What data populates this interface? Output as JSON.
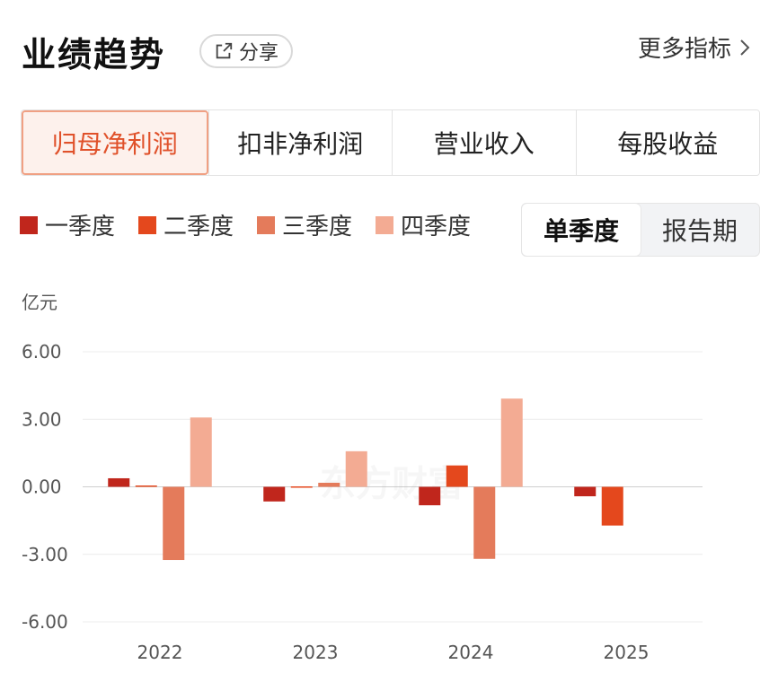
{
  "header": {
    "title": "业绩趋势",
    "share_label": "分享",
    "more_label": "更多指标"
  },
  "tabs": [
    {
      "label": "归母净利润",
      "active": true
    },
    {
      "label": "扣非净利润",
      "active": false
    },
    {
      "label": "营业收入",
      "active": false
    },
    {
      "label": "每股收益",
      "active": false
    }
  ],
  "legend": [
    {
      "label": "一季度",
      "color": "#c0261c"
    },
    {
      "label": "二季度",
      "color": "#e4481d"
    },
    {
      "label": "三季度",
      "color": "#e47b5b"
    },
    {
      "label": "四季度",
      "color": "#f3ab93"
    }
  ],
  "period_toggle": [
    {
      "label": "单季度",
      "active": true
    },
    {
      "label": "报告期",
      "active": false
    }
  ],
  "watermark": "东方财富",
  "chart_data": {
    "type": "bar",
    "unit_label": "亿元",
    "categories": [
      "2022",
      "2023",
      "2024",
      "2025"
    ],
    "ylim": [
      -6,
      6
    ],
    "yticks": [
      "6.00",
      "3.00",
      "0.00",
      "-3.00",
      "-6.00"
    ],
    "ytick_values": [
      6,
      3,
      0,
      -3,
      -6
    ],
    "grid": true,
    "series": [
      {
        "name": "一季度",
        "color": "#c0261c",
        "values": [
          0.38,
          -0.65,
          -0.82,
          -0.42
        ]
      },
      {
        "name": "二季度",
        "color": "#e4481d",
        "values": [
          0.06,
          0.02,
          0.95,
          -1.72
        ]
      },
      {
        "name": "三季度",
        "color": "#e47b5b",
        "values": [
          -3.25,
          0.18,
          -3.2,
          null
        ]
      },
      {
        "name": "四季度",
        "color": "#f3ab93",
        "values": [
          3.08,
          1.58,
          3.92,
          null
        ]
      }
    ]
  }
}
